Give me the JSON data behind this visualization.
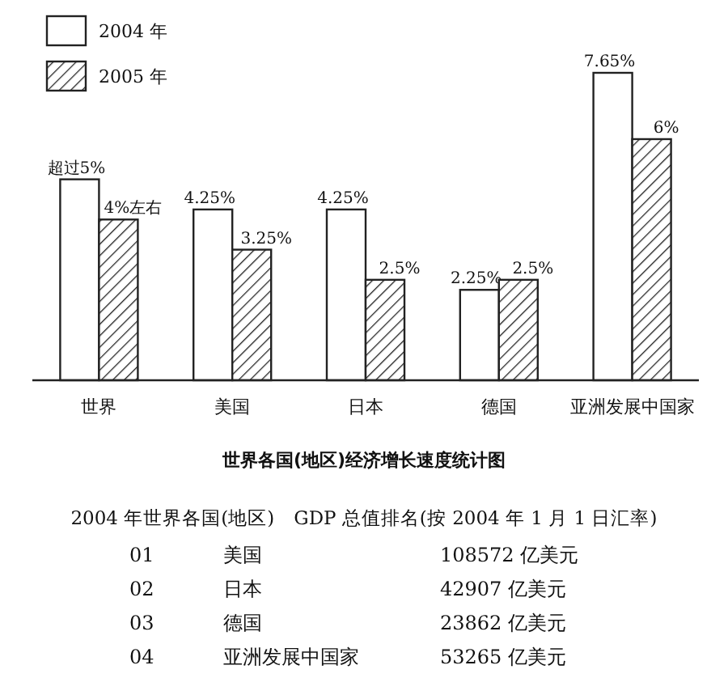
{
  "chart_data": {
    "type": "bar",
    "title": "世界各国(地区)经济增长速度统计图",
    "categories": [
      "世界",
      "美国",
      "日本",
      "德国",
      "亚洲发展中国家"
    ],
    "series": [
      {
        "name": "2004 年",
        "color": "#ffffff",
        "values": [
          5,
          4.25,
          4.25,
          2.25,
          7.65
        ],
        "value_labels": [
          "超过5%",
          "4.25%",
          "4.25%",
          "2.25%",
          "7.65%"
        ]
      },
      {
        "name": "2005 年",
        "color": "#222222",
        "values": [
          4,
          3.25,
          2.5,
          2.5,
          6
        ],
        "value_labels": [
          "4%左右",
          "3.25%",
          "2.5%",
          "2.5%",
          "6%"
        ]
      }
    ],
    "legend": "top left",
    "annotations": [
      "2004 年世界各国(地区)　GDP 总值排名(按 2004 年 1 月 1 日汇率)",
      "01",
      "美国",
      "108572 亿美元",
      "02",
      "日本",
      "42907 亿美元",
      "03",
      "德国",
      "23862 亿美元",
      "04",
      "亚洲发展中国家",
      "53265 亿美元"
    ]
  }
}
